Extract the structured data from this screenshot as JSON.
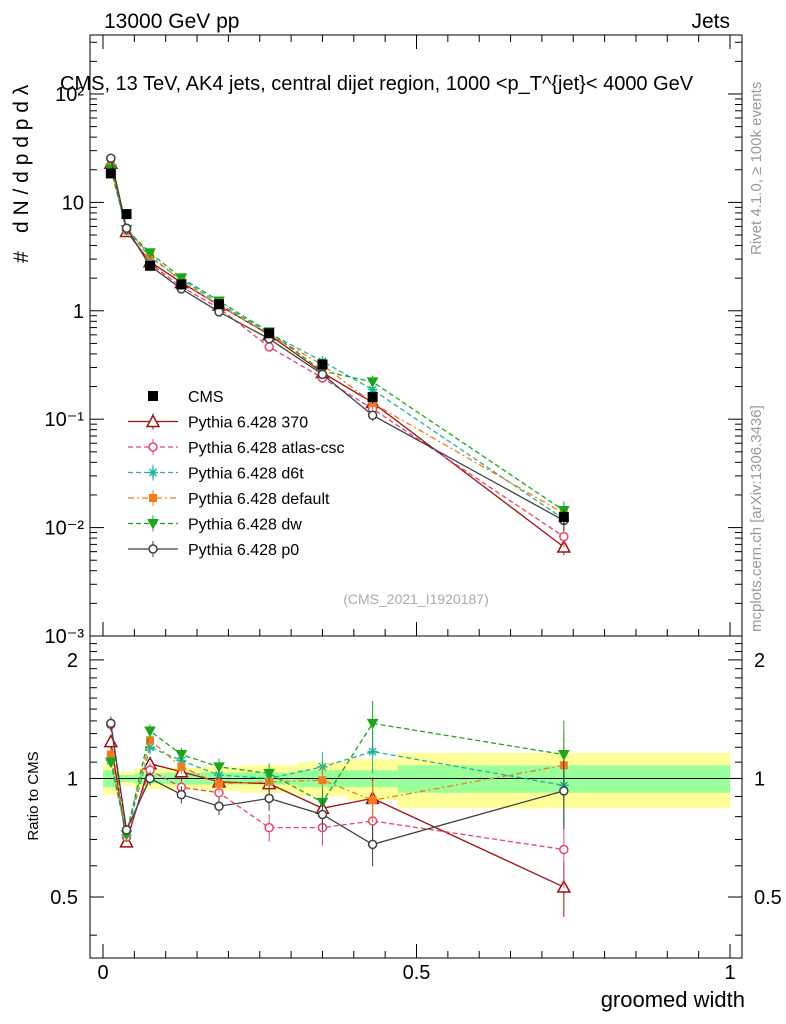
{
  "header": {
    "left": "13000 GeV pp",
    "right": "Jets"
  },
  "side_labels": {
    "rivet": "Rivet 4.1.0, ≥ 100k events",
    "mcplots": "mcplots.cern.ch [arXiv:1306.3436]"
  },
  "chart_data": {
    "type": "line",
    "title": "CMS, 13 TeV, AK4 jets, central dijet region, 1000 <p_T^{jet}< 4000 GeV",
    "watermark": "(CMS_2021_I1920187)",
    "xlabel": "groomed width",
    "ylabel_upper": "1 / dN/dp_T  d²N / dp_T dλ",
    "ylabel_lower": "Ratio to CMS",
    "xlim": [
      0,
      1
    ],
    "ylim_upper": [
      0.001,
      350
    ],
    "ylim_lower": [
      0.35,
      2.3
    ],
    "x_ticks": [
      0,
      0.5,
      1
    ],
    "x_tick_labels": [
      "0",
      "0.5",
      "1"
    ],
    "y_ticks_upper": [
      0.001,
      0.01,
      0.1,
      1,
      10,
      100
    ],
    "y_tick_labels_upper": [
      "10⁻³",
      "10⁻²",
      "10⁻¹",
      "1",
      "10",
      "10²"
    ],
    "y_ticks_lower": [
      0.5,
      1,
      2
    ],
    "y_tick_labels_lower": [
      "0.5",
      "1",
      "2"
    ],
    "bin_edges": [
      0,
      0.025,
      0.05,
      0.1,
      0.15,
      0.22,
      0.31,
      0.39,
      0.47,
      1.0
    ],
    "x": [
      0.0125,
      0.0375,
      0.075,
      0.125,
      0.185,
      0.265,
      0.35,
      0.43,
      0.735
    ],
    "data": {
      "name": "CMS",
      "values": [
        18.5,
        7.8,
        2.6,
        1.75,
        1.15,
        0.62,
        0.32,
        0.16,
        0.0125
      ],
      "errors": [
        1.2,
        0.5,
        0.15,
        0.1,
        0.07,
        0.04,
        0.03,
        0.02,
        0.0018
      ],
      "band_stat": [
        0.05,
        0.02,
        0.03,
        0.035,
        0.035,
        0.035,
        0.05,
        0.05,
        0.08
      ],
      "band_total": [
        0.09,
        0.04,
        0.06,
        0.065,
        0.07,
        0.08,
        0.1,
        0.12,
        0.16
      ]
    },
    "series": [
      {
        "name": "Pythia 6.428 370",
        "color": "#a01010",
        "dash": "",
        "marker": "triangle-open",
        "ratio": [
          1.24,
          0.69,
          1.09,
          1.04,
          0.98,
          0.97,
          0.84,
          0.89,
          0.53
        ],
        "err": [
          0.04,
          0.03,
          0.04,
          0.05,
          0.05,
          0.06,
          0.09,
          0.13,
          0.16
        ]
      },
      {
        "name": "Pythia 6.428 atlas-csc",
        "color": "#e8436b",
        "dash": "5,3",
        "marker": "circle-open",
        "ratio": [
          1.37,
          0.71,
          1.05,
          0.95,
          0.92,
          0.75,
          0.75,
          0.78,
          0.66
        ],
        "err": [
          0.04,
          0.03,
          0.04,
          0.04,
          0.05,
          0.08,
          0.1,
          0.11,
          0.2
        ]
      },
      {
        "name": "Pythia 6.428 d6t",
        "color": "#20b59a",
        "dash": "5,3",
        "marker": "star",
        "ratio": [
          1.11,
          0.72,
          1.2,
          1.11,
          1.02,
          1.0,
          1.07,
          1.17,
          0.96
        ],
        "err": [
          0.03,
          0.03,
          0.04,
          0.04,
          0.05,
          0.06,
          0.09,
          0.12,
          0.2
        ]
      },
      {
        "name": "Pythia 6.428 default",
        "color": "#f47a20",
        "dash": "6,3,2,3",
        "marker": "square",
        "ratio": [
          1.15,
          0.73,
          1.25,
          1.07,
          0.97,
          0.98,
          0.99,
          0.88,
          1.08
        ],
        "err": [
          0.04,
          0.03,
          0.04,
          0.04,
          0.05,
          0.06,
          0.09,
          0.12,
          0.2
        ]
      },
      {
        "name": "Pythia 6.428 dw",
        "color": "#1ba61b",
        "dash": "5,3",
        "marker": "triangle-down",
        "ratio": [
          1.1,
          0.72,
          1.32,
          1.15,
          1.07,
          1.03,
          0.87,
          1.38,
          1.15
        ],
        "err": [
          0.03,
          0.03,
          0.04,
          0.04,
          0.05,
          0.06,
          0.09,
          0.14,
          0.22
        ]
      },
      {
        "name": "Pythia 6.428 p0",
        "color": "#404040",
        "dash": "",
        "marker": "circle-open",
        "ratio": [
          1.38,
          0.74,
          1.0,
          0.91,
          0.85,
          0.89,
          0.81,
          0.68,
          0.93
        ],
        "err": [
          0.04,
          0.03,
          0.04,
          0.05,
          0.05,
          0.07,
          0.09,
          0.12,
          0.2
        ]
      }
    ]
  }
}
